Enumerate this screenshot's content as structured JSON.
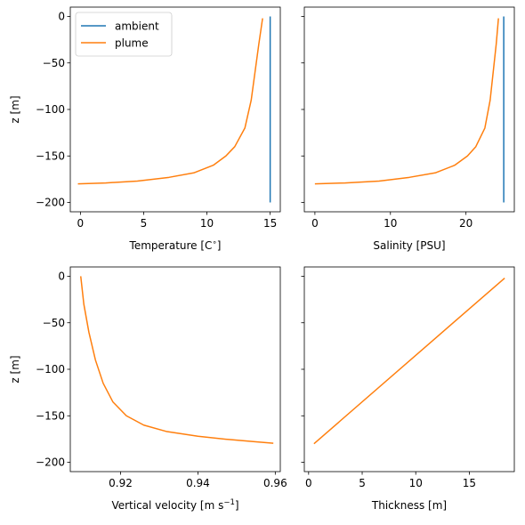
{
  "colors": {
    "ambient": "#1f77b4",
    "plume": "#ff7f0e"
  },
  "legend": {
    "placement": "upper-left",
    "entries": [
      "ambient",
      "plume"
    ]
  },
  "chart_data": [
    {
      "type": "line",
      "xlabel": "Temperature [C$^\\circ$]",
      "xlabel_main": "Temperature [C",
      "xlabel_sup": "∘",
      "xlabel_tail": "]",
      "ylabel": "z [m]",
      "xlim": [
        -0.8,
        15.8
      ],
      "ylim": [
        -210,
        10
      ],
      "xticks": [
        0,
        5,
        10,
        15
      ],
      "xtick_labels": [
        "0",
        "5",
        "10",
        "15"
      ],
      "yticks": [
        0,
        -50,
        -100,
        -150,
        -200
      ],
      "ytick_labels": [
        "0",
        "−50",
        "−100",
        "−150",
        "−200"
      ],
      "show_yticklabels": true,
      "series": [
        {
          "name": "ambient",
          "color": "ambient",
          "points": [
            [
              15.0,
              0
            ],
            [
              15.0,
              -200
            ]
          ]
        },
        {
          "name": "plume",
          "color": "plume",
          "points": [
            [
              14.4,
              -2
            ],
            [
              14.1,
              -30
            ],
            [
              13.8,
              -60
            ],
            [
              13.5,
              -90
            ],
            [
              13.0,
              -120
            ],
            [
              12.2,
              -140
            ],
            [
              11.5,
              -150
            ],
            [
              10.5,
              -160
            ],
            [
              9.0,
              -168
            ],
            [
              7.0,
              -173
            ],
            [
              4.5,
              -177
            ],
            [
              2.0,
              -179
            ],
            [
              -0.2,
              -180
            ]
          ]
        }
      ]
    },
    {
      "type": "line",
      "xlabel": "Salinity [PSU]",
      "xlabel_main": "Salinity [PSU]",
      "xlabel_sup": "",
      "xlabel_tail": "",
      "ylabel": "",
      "xlim": [
        -1.4,
        26.4
      ],
      "ylim": [
        -210,
        10
      ],
      "xticks": [
        0,
        10,
        20
      ],
      "xtick_labels": [
        "0",
        "10",
        "20"
      ],
      "yticks": [
        0,
        -50,
        -100,
        -150,
        -200
      ],
      "ytick_labels": [
        "",
        "",
        "",
        "",
        ""
      ],
      "show_yticklabels": false,
      "series": [
        {
          "name": "ambient",
          "color": "ambient",
          "points": [
            [
              25.0,
              0
            ],
            [
              25.0,
              -200
            ]
          ]
        },
        {
          "name": "plume",
          "color": "plume",
          "points": [
            [
              24.3,
              -2
            ],
            [
              24.0,
              -30
            ],
            [
              23.6,
              -60
            ],
            [
              23.2,
              -90
            ],
            [
              22.5,
              -120
            ],
            [
              21.3,
              -140
            ],
            [
              20.2,
              -150
            ],
            [
              18.5,
              -160
            ],
            [
              16.0,
              -168
            ],
            [
              12.5,
              -173
            ],
            [
              8.5,
              -177
            ],
            [
              4.0,
              -179
            ],
            [
              0.0,
              -180
            ]
          ]
        }
      ]
    },
    {
      "type": "line",
      "xlabel": "Vertical velocity [m s$^{-1}$]",
      "xlabel_main": "Vertical velocity [m s",
      "xlabel_sup": "−1",
      "xlabel_tail": "]",
      "ylabel": "z [m]",
      "xlim": [
        0.907,
        0.9613
      ],
      "ylim": [
        -210,
        10
      ],
      "xticks": [
        0.92,
        0.94,
        0.96
      ],
      "xtick_labels": [
        "0.92",
        "0.94",
        "0.96"
      ],
      "yticks": [
        0,
        -50,
        -100,
        -150,
        -200
      ],
      "ytick_labels": [
        "0",
        "−50",
        "−100",
        "−150",
        "−200"
      ],
      "show_yticklabels": true,
      "series": [
        {
          "name": "plume",
          "color": "plume",
          "points": [
            [
              0.9097,
              0
            ],
            [
              0.9105,
              -30
            ],
            [
              0.9118,
              -60
            ],
            [
              0.9135,
              -90
            ],
            [
              0.9155,
              -115
            ],
            [
              0.918,
              -135
            ],
            [
              0.9215,
              -150
            ],
            [
              0.926,
              -160
            ],
            [
              0.932,
              -167
            ],
            [
              0.94,
              -172
            ],
            [
              0.948,
              -175.5
            ],
            [
              0.955,
              -178
            ],
            [
              0.9595,
              -179.5
            ]
          ]
        }
      ]
    },
    {
      "type": "line",
      "xlabel": "Thickness [m]",
      "xlabel_main": "Thickness [m]",
      "xlabel_sup": "",
      "xlabel_tail": "",
      "ylabel": "",
      "xlim": [
        -0.4,
        19.2
      ],
      "ylim": [
        -210,
        10
      ],
      "xticks": [
        0,
        5,
        10,
        15
      ],
      "xtick_labels": [
        "0",
        "5",
        "10",
        "15"
      ],
      "yticks": [
        0,
        -50,
        -100,
        -150,
        -200
      ],
      "ytick_labels": [
        "",
        "",
        "",
        "",
        ""
      ],
      "show_yticklabels": false,
      "series": [
        {
          "name": "plume",
          "color": "plume",
          "points": [
            [
              0.5,
              -180
            ],
            [
              18.3,
              -2
            ]
          ]
        }
      ]
    }
  ]
}
